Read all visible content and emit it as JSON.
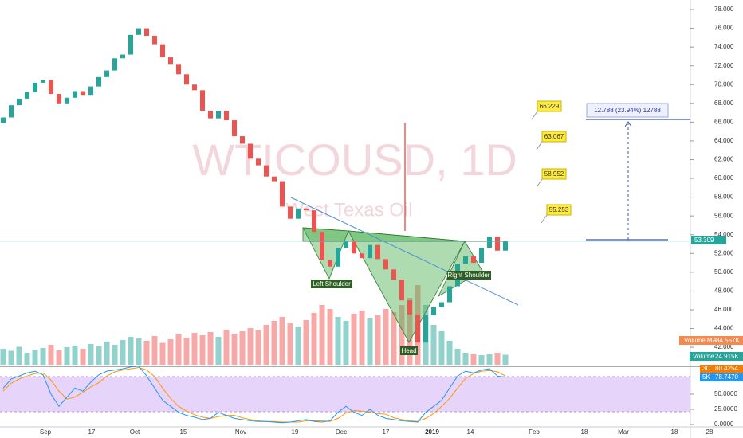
{
  "chart_data": {
    "type": "candlestick",
    "title": "WTICOUSD, 1D",
    "subtitle": "West Texas Oil",
    "open": [
      65.9,
      66.5,
      67.8,
      68.5,
      69.2,
      70.2,
      70.5,
      69.0,
      68.0,
      68.6,
      69.3,
      68.9,
      69.8,
      70.8,
      71.5,
      72.8,
      73.2,
      75.3,
      76.0,
      75.2,
      74.3,
      72.9,
      72.2,
      71.1,
      70.0,
      69.4,
      67.2,
      66.4,
      67.2,
      66.2,
      64.5,
      63.7,
      62.1,
      61.4,
      60.2,
      59.7,
      57.0,
      55.7,
      56.8,
      56.6,
      54.3,
      51.3,
      50.6,
      52.6,
      53.3,
      52.0,
      51.5,
      52.9,
      51.4,
      50.3,
      49.2,
      47.0,
      45.5,
      42.5,
      45.4,
      46.3,
      46.8,
      48.5,
      50.9,
      51.7,
      51.0,
      52.6,
      53.8,
      52.3
    ],
    "close": [
      66.5,
      67.8,
      68.5,
      69.2,
      70.2,
      70.5,
      69.0,
      68.0,
      68.6,
      69.3,
      68.9,
      69.8,
      70.8,
      71.5,
      72.8,
      73.2,
      75.3,
      76.0,
      75.2,
      74.3,
      72.9,
      72.2,
      71.1,
      70.0,
      69.4,
      67.2,
      66.4,
      67.2,
      66.2,
      64.5,
      63.7,
      62.1,
      61.4,
      60.2,
      59.7,
      57.0,
      55.7,
      56.8,
      56.6,
      54.3,
      51.3,
      50.6,
      52.6,
      53.3,
      52.0,
      51.5,
      52.9,
      51.4,
      50.3,
      49.2,
      47.0,
      45.5,
      42.5,
      45.4,
      46.3,
      46.8,
      48.5,
      50.9,
      51.7,
      51.0,
      52.6,
      53.8,
      52.3,
      53.3
    ],
    "volume": [
      40,
      35,
      45,
      30,
      38,
      42,
      50,
      36,
      44,
      48,
      40,
      52,
      46,
      58,
      50,
      62,
      70,
      66,
      60,
      72,
      55,
      64,
      76,
      68,
      80,
      74,
      82,
      70,
      88,
      78,
      84,
      92,
      86,
      100,
      110,
      120,
      104,
      96,
      112,
      130,
      150,
      140,
      120,
      110,
      128,
      136,
      118,
      124,
      140,
      132,
      150,
      168,
      200,
      150,
      100,
      84,
      60,
      40,
      30,
      28,
      24,
      26,
      30,
      25
    ],
    "stoch_k": [
      60,
      75,
      80,
      85,
      88,
      82,
      50,
      30,
      45,
      60,
      55,
      70,
      82,
      88,
      90,
      92,
      95,
      96,
      80,
      60,
      40,
      30,
      20,
      15,
      12,
      8,
      10,
      20,
      15,
      10,
      8,
      6,
      5,
      5,
      4,
      3,
      4,
      6,
      8,
      5,
      4,
      6,
      20,
      30,
      20,
      15,
      25,
      15,
      10,
      8,
      6,
      5,
      4,
      20,
      30,
      40,
      60,
      80,
      88,
      85,
      90,
      92,
      80,
      78
    ],
    "stoch_d": [
      55,
      68,
      75,
      80,
      84,
      85,
      73,
      55,
      42,
      45,
      53,
      62,
      69,
      80,
      87,
      90,
      92,
      94,
      90,
      79,
      60,
      43,
      30,
      22,
      16,
      12,
      10,
      13,
      15,
      15,
      11,
      8,
      6,
      5,
      5,
      4,
      4,
      4,
      6,
      6,
      6,
      5,
      10,
      19,
      23,
      22,
      20,
      18,
      17,
      11,
      8,
      6,
      5,
      10,
      18,
      30,
      43,
      60,
      76,
      84,
      88,
      89,
      87,
      80
    ],
    "up_color": "#26a69a",
    "down_color": "#ef5350",
    "ylim": [
      40.14,
      79.02
    ],
    "yticks": [
      {
        "value": 42,
        "label": "42.000"
      },
      {
        "value": 44,
        "label": "44.000"
      },
      {
        "value": 46,
        "label": "46.000"
      },
      {
        "value": 48,
        "label": "48.000"
      },
      {
        "value": 50,
        "label": "50.000"
      },
      {
        "value": 52,
        "label": "52.000"
      },
      {
        "value": 54,
        "label": "54.000"
      },
      {
        "value": 56,
        "label": "56.000"
      },
      {
        "value": 58,
        "label": "58.000"
      },
      {
        "value": 60,
        "label": "60.000"
      },
      {
        "value": 62,
        "label": "62.000"
      },
      {
        "value": 64,
        "label": "64.000"
      },
      {
        "value": 66,
        "label": "66.000"
      },
      {
        "value": 68,
        "label": "68.000"
      },
      {
        "value": 70,
        "label": "70.000"
      },
      {
        "value": 72,
        "label": "72.000"
      },
      {
        "value": 74,
        "label": "74.000"
      },
      {
        "value": 76,
        "label": "76.000"
      },
      {
        "value": 78,
        "label": "78.000"
      }
    ],
    "stoch_ylim": [
      0,
      100
    ],
    "stoch_yticks": [
      {
        "value": 0,
        "label": "0.0000"
      },
      {
        "value": 25,
        "label": "25.0000"
      },
      {
        "value": 50,
        "label": "50.0000"
      }
    ],
    "x_labels": [
      "Sep",
      "17",
      "Oct",
      "15",
      "Nov",
      "19",
      "Dec",
      "17",
      "2019",
      "14",
      "Feb",
      "18",
      "Mar",
      "18",
      "28"
    ],
    "last_price": 53.309,
    "targets": [
      66.229,
      63.067,
      58.952,
      55.253
    ],
    "measure_label": "12.788 (23.94%) 12788",
    "pattern_labels": [
      "Left Shoulder",
      "Head",
      "Right Shoulder"
    ],
    "volume_ma": {
      "name": "Volume MA",
      "value": "84.557K"
    },
    "volume_now": {
      "name": "Volume",
      "value": "24.915K"
    },
    "stoch_d_now": {
      "name": "3D",
      "value": "80.4254"
    },
    "stoch_k_now": {
      "name": "5K",
      "value": "78.7470"
    }
  }
}
